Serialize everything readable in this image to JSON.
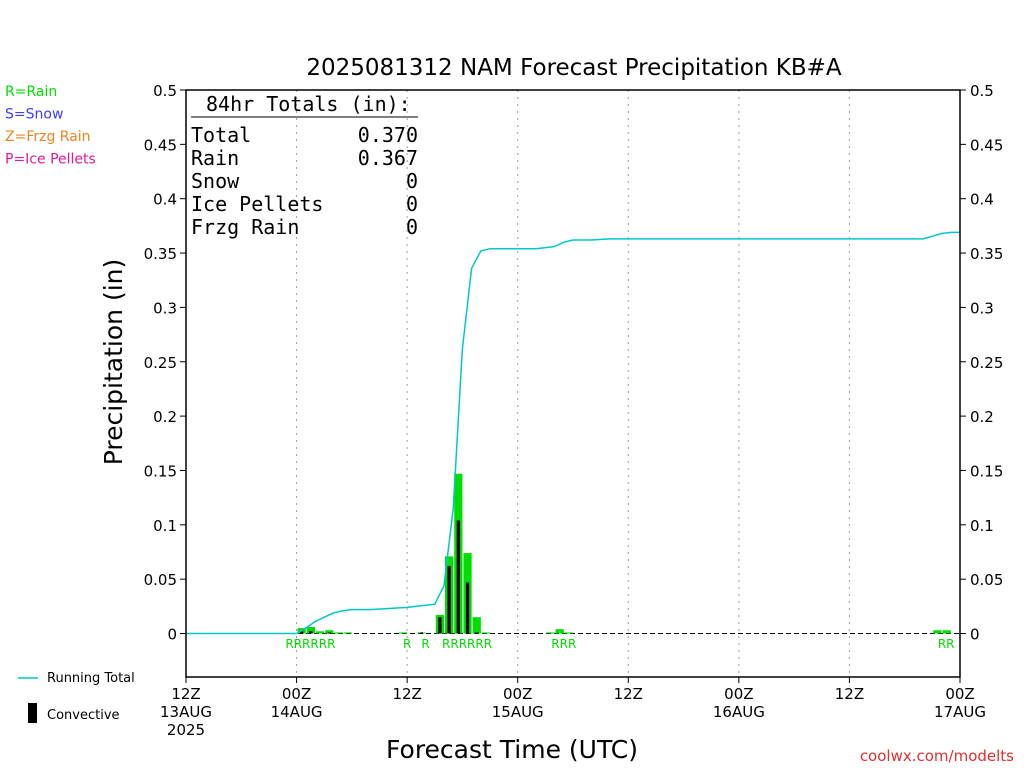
{
  "chart_data": {
    "type": "bar",
    "title": "2025081312 NAM Forecast Precipitation KB#A",
    "xlabel": "Forecast Time (UTC)",
    "ylabel": "Precipitation (in)",
    "ylim": [
      -0.04,
      0.5
    ],
    "y_ticks": [
      "0",
      "0.05",
      "0.1",
      "0.15",
      "0.2",
      "0.25",
      "0.3",
      "0.35",
      "0.4",
      "0.45",
      "0.5"
    ],
    "x_range_hours": [
      0,
      84
    ],
    "x_ticks": [
      {
        "h": 0,
        "l1": "12Z",
        "l2": "13AUG",
        "l3": "2025"
      },
      {
        "h": 12,
        "l1": "00Z",
        "l2": "14AUG",
        "l3": ""
      },
      {
        "h": 24,
        "l1": "12Z",
        "l2": "",
        "l3": ""
      },
      {
        "h": 36,
        "l1": "00Z",
        "l2": "15AUG",
        "l3": ""
      },
      {
        "h": 48,
        "l1": "12Z",
        "l2": "",
        "l3": ""
      },
      {
        "h": 60,
        "l1": "00Z",
        "l2": "16AUG",
        "l3": ""
      },
      {
        "h": 72,
        "l1": "12Z",
        "l2": "",
        "l3": ""
      },
      {
        "h": 84,
        "l1": "00Z",
        "l2": "17AUG",
        "l3": ""
      }
    ],
    "grid": "vertical dotted",
    "precip_bars": [
      {
        "h": 13,
        "rain": 0.005,
        "conv": 0.002
      },
      {
        "h": 14,
        "rain": 0.006,
        "conv": 0.002
      },
      {
        "h": 15,
        "rain": 0.002,
        "conv": 0
      },
      {
        "h": 16,
        "rain": 0.003,
        "conv": 0.001
      },
      {
        "h": 17,
        "rain": 0.001,
        "conv": 0
      },
      {
        "h": 18,
        "rain": 0.001,
        "conv": 0
      },
      {
        "h": 24,
        "rain": 0.001,
        "conv": 0
      },
      {
        "h": 26,
        "rain": 0.001,
        "conv": 0.001
      },
      {
        "h": 28,
        "rain": 0.017,
        "conv": 0.015
      },
      {
        "h": 29,
        "rain": 0.071,
        "conv": 0.062
      },
      {
        "h": 30,
        "rain": 0.147,
        "conv": 0.104
      },
      {
        "h": 31,
        "rain": 0.074,
        "conv": 0.047
      },
      {
        "h": 32,
        "rain": 0.015,
        "conv": 0.001
      },
      {
        "h": 33,
        "rain": 0.001,
        "conv": 0
      },
      {
        "h": 40,
        "rain": 0.001,
        "conv": 0
      },
      {
        "h": 41,
        "rain": 0.004,
        "conv": 0
      },
      {
        "h": 42,
        "rain": 0.001,
        "conv": 0
      },
      {
        "h": 82,
        "rain": 0.003,
        "conv": 0
      },
      {
        "h": 83,
        "rain": 0.003,
        "conv": 0
      }
    ],
    "running_total": [
      [
        0,
        0
      ],
      [
        12,
        0
      ],
      [
        13,
        0.005
      ],
      [
        14,
        0.011
      ],
      [
        15,
        0.015
      ],
      [
        16,
        0.019
      ],
      [
        17,
        0.021
      ],
      [
        18,
        0.022
      ],
      [
        20,
        0.022
      ],
      [
        22,
        0.023
      ],
      [
        24,
        0.024
      ],
      [
        25,
        0.025
      ],
      [
        26,
        0.026
      ],
      [
        27,
        0.027
      ],
      [
        28,
        0.044
      ],
      [
        29,
        0.115
      ],
      [
        30,
        0.262
      ],
      [
        31,
        0.336
      ],
      [
        32,
        0.352
      ],
      [
        33,
        0.354
      ],
      [
        36,
        0.354
      ],
      [
        38,
        0.354
      ],
      [
        40,
        0.356
      ],
      [
        41,
        0.36
      ],
      [
        42,
        0.362
      ],
      [
        44,
        0.362
      ],
      [
        46,
        0.363
      ],
      [
        60,
        0.363
      ],
      [
        76,
        0.363
      ],
      [
        80,
        0.363
      ],
      [
        82,
        0.368
      ],
      [
        83,
        0.369
      ],
      [
        84,
        0.369
      ]
    ],
    "ptype_labels": [
      {
        "h": 13.5,
        "text": "RRRRRR"
      },
      {
        "h": 24,
        "text": "R"
      },
      {
        "h": 26,
        "text": "R"
      },
      {
        "h": 30.5,
        "text": "RRRRRR"
      },
      {
        "h": 41,
        "text": "RRR"
      },
      {
        "h": 82.5,
        "text": "RR"
      }
    ],
    "totals_box": {
      "heading": "84hr Totals (in):",
      "rows": [
        {
          "label": "Total",
          "value": "0.370"
        },
        {
          "label": "Rain",
          "value": "0.367"
        },
        {
          "label": "Snow",
          "value": "0"
        },
        {
          "label": "Ice Pellets",
          "value": "0"
        },
        {
          "label": "Frzg Rain",
          "value": "0"
        }
      ]
    },
    "ptype_legend": [
      {
        "text": "R=Rain",
        "color": "#00dd00"
      },
      {
        "text": "S=Snow",
        "color": "#3c3cff"
      },
      {
        "text": "Z=Frzg Rain",
        "color": "#f0821e"
      },
      {
        "text": "P=Ice Pellets",
        "color": "#e01a96"
      }
    ],
    "series_legend": {
      "running_total": "Running Total",
      "convective": "Convective"
    },
    "colors": {
      "rain": "#00dd00",
      "convective": "#000000",
      "running_total": "#00c8c8",
      "grid": "#a0a0a0"
    }
  },
  "credit": "coolwx.com/modelts"
}
